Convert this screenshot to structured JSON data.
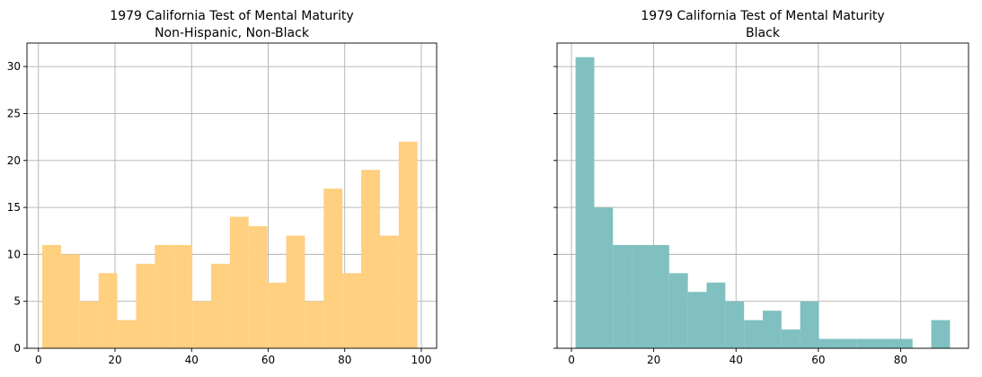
{
  "chart_data": [
    {
      "type": "bar",
      "title_line1": "1979 California Test of Mental Maturity",
      "title_line2": "Non-Hispanic, Non-Black",
      "color": "#ffd080",
      "bin_edges": [
        1,
        5.9,
        10.8,
        15.7,
        20.6,
        25.5,
        30.4,
        35.3,
        40.2,
        45.1,
        50,
        54.9,
        59.8,
        64.7,
        69.6,
        74.5,
        79.4,
        84.3,
        89.2,
        94.1,
        99
      ],
      "values": [
        11,
        10,
        5,
        8,
        3,
        9,
        11,
        11,
        5,
        9,
        14,
        13,
        7,
        12,
        5,
        17,
        8,
        19,
        12,
        22
      ],
      "xlim": [
        -3,
        104
      ],
      "ylim": [
        0,
        32.5
      ],
      "xticks": [
        0,
        20,
        40,
        60,
        80,
        100
      ],
      "yticks": [
        0,
        5,
        10,
        15,
        20,
        25,
        30
      ],
      "grid": true
    },
    {
      "type": "bar",
      "title_line1": "1979 California Test of Mental Maturity",
      "title_line2": "Black",
      "color": "#80c0c0",
      "bin_edges": [
        1,
        5.55,
        10.1,
        14.65,
        19.2,
        23.75,
        28.3,
        32.85,
        37.4,
        41.95,
        46.5,
        51.05,
        55.6,
        60.15,
        64.7,
        69.25,
        73.8,
        78.35,
        82.9,
        87.45,
        92
      ],
      "values": [
        31,
        15,
        11,
        11,
        11,
        8,
        6,
        7,
        5,
        3,
        4,
        2,
        5,
        1,
        1,
        1,
        1,
        1,
        0,
        3
      ],
      "xlim": [
        -3.5,
        96.5
      ],
      "ylim": [
        0,
        32.5
      ],
      "xticks": [
        0,
        20,
        40,
        60,
        80
      ],
      "yticks": [
        0,
        5,
        10,
        15,
        20,
        25,
        30
      ],
      "grid": true
    }
  ]
}
